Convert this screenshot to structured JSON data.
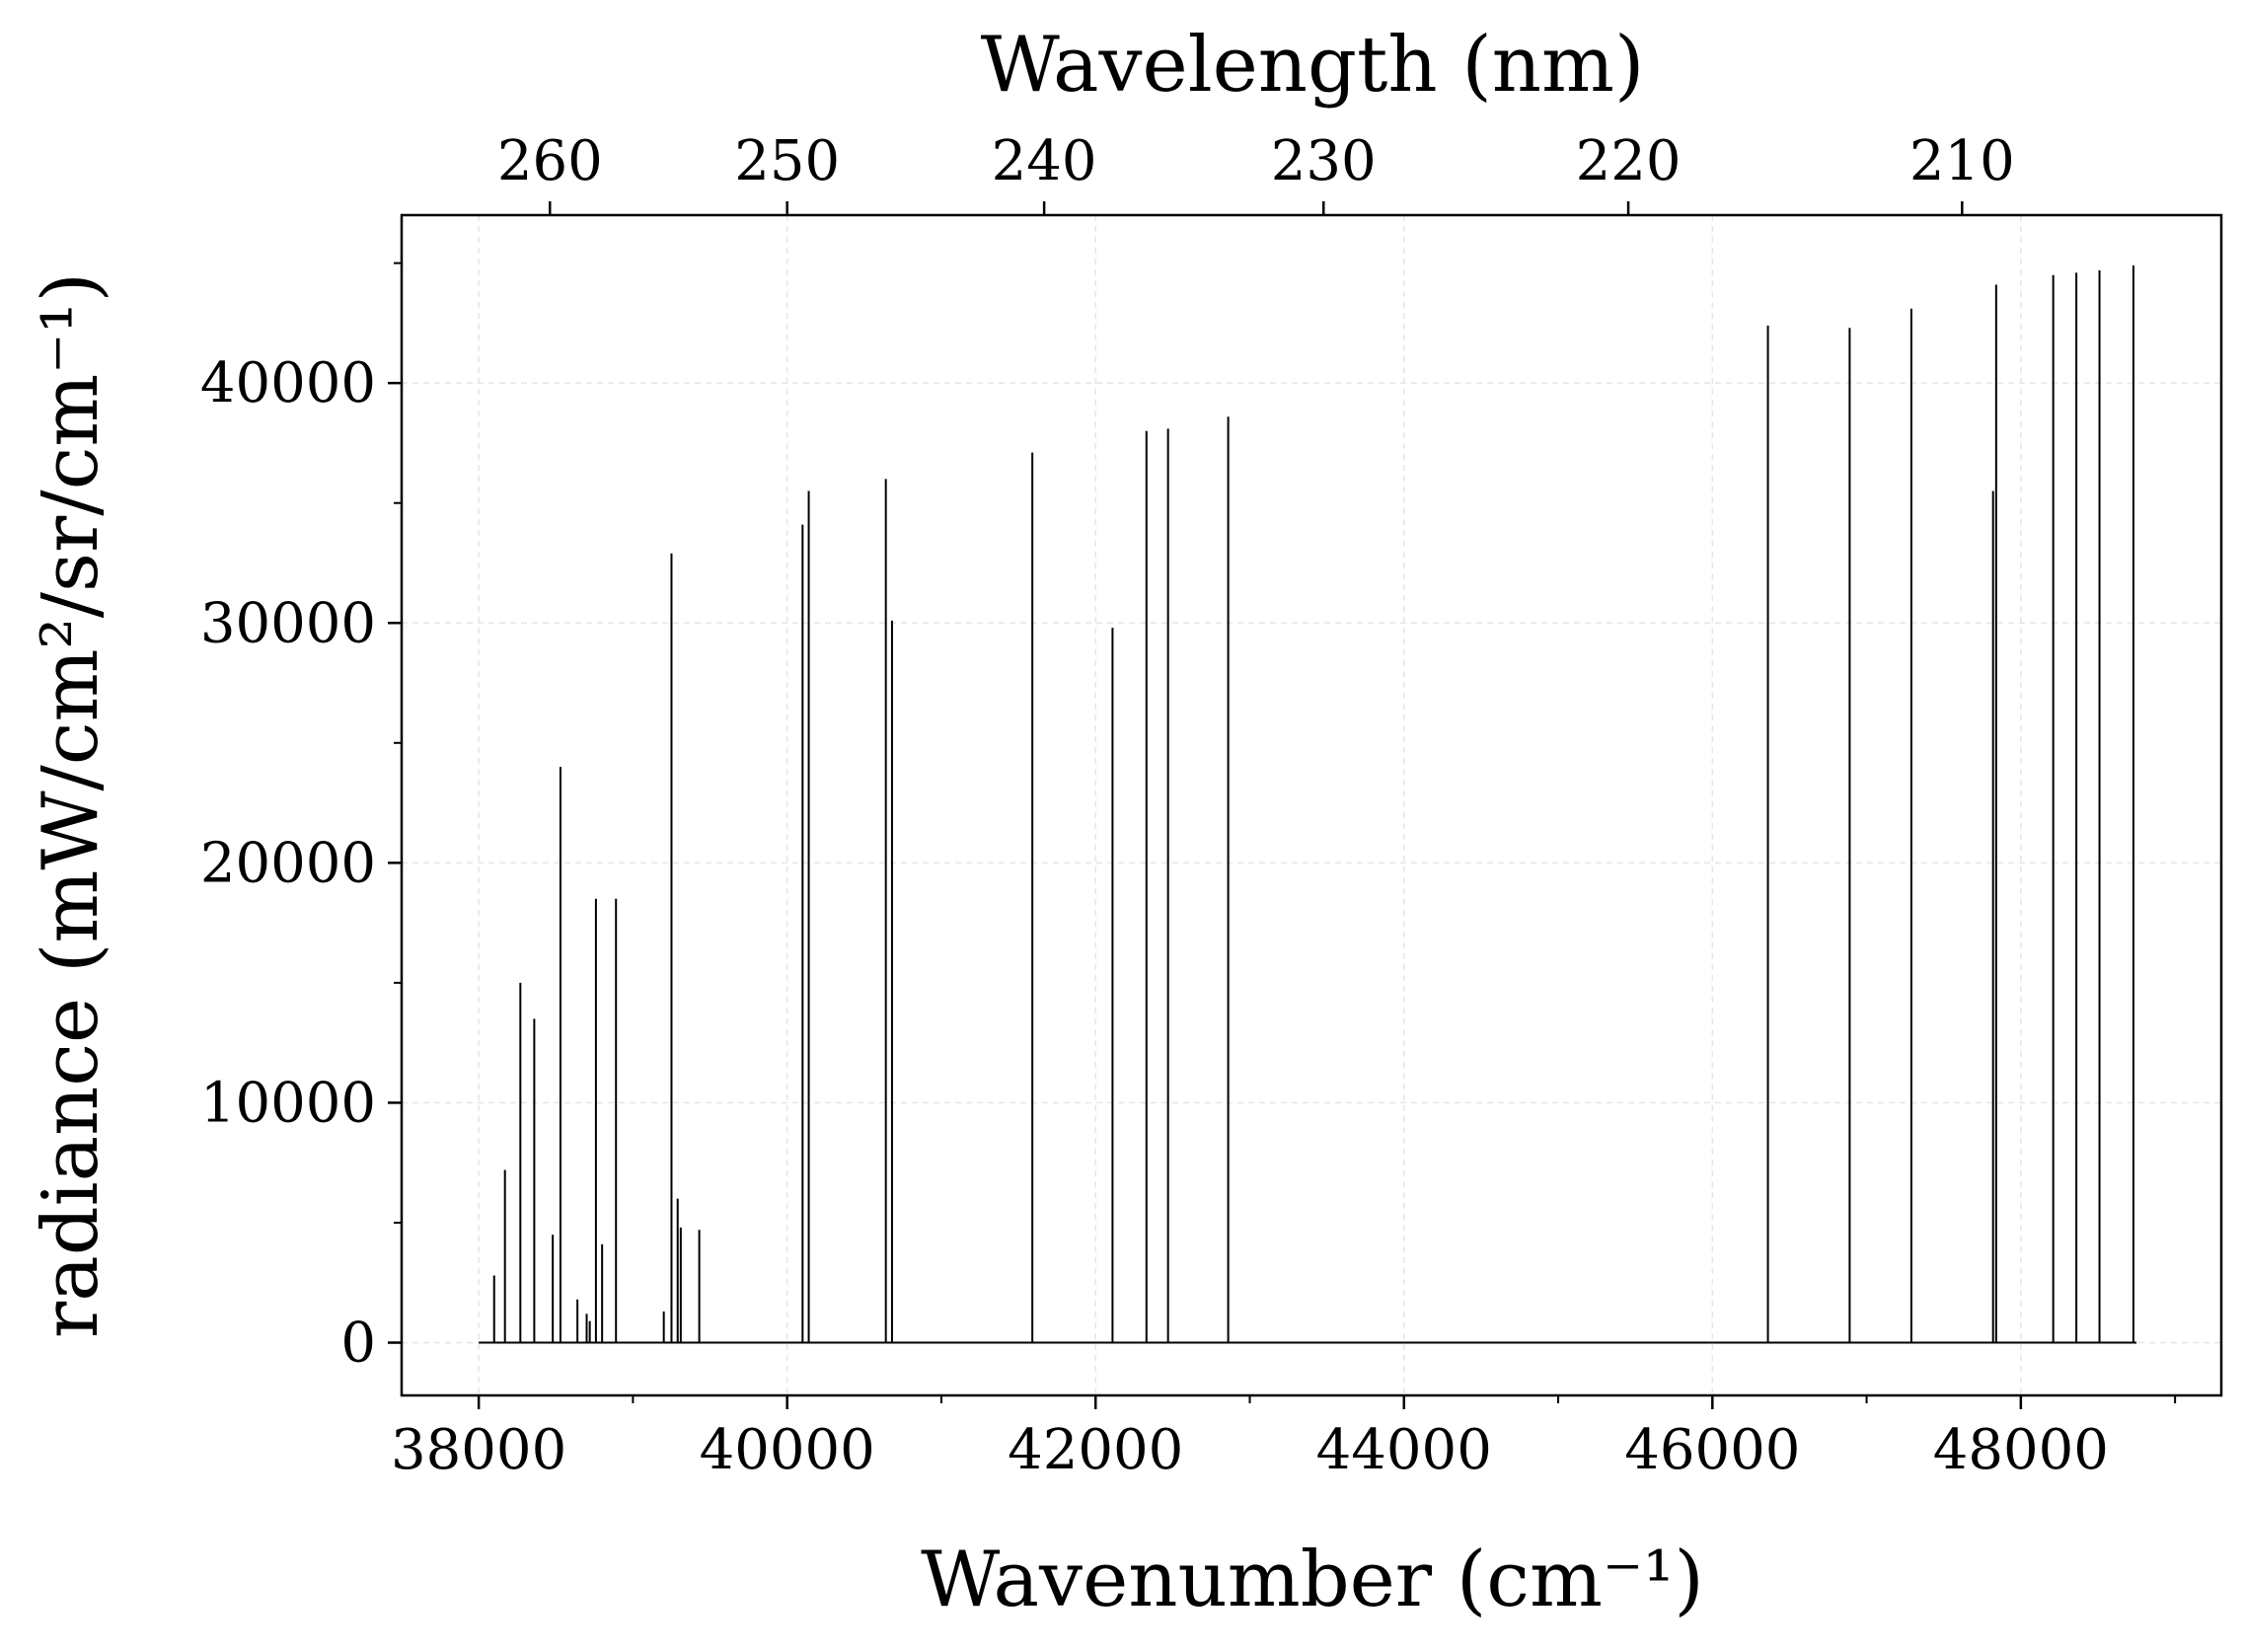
{
  "chart_data": {
    "type": "line",
    "xlabel": "Wavenumber (cm⁻¹)",
    "ylabel": "radiance (mW/cm²/sr/cm⁻¹)",
    "top_xlabel": "Wavelength (nm)",
    "xlim": [
      37500,
      49300
    ],
    "ylim": [
      -2200,
      47000
    ],
    "x_ticks": [
      38000,
      40000,
      42000,
      44000,
      46000,
      48000
    ],
    "x_tick_labels": [
      "38000",
      "40000",
      "42000",
      "44000",
      "46000",
      "48000"
    ],
    "x_minor_ticks": [
      39000,
      41000,
      43000,
      45000,
      47000,
      49000
    ],
    "y_ticks": [
      0,
      10000,
      20000,
      30000,
      40000
    ],
    "y_tick_labels": [
      "0",
      "10000",
      "20000",
      "30000",
      "40000"
    ],
    "y_minor_ticks": [
      5000,
      15000,
      25000,
      35000,
      45000
    ],
    "top_ticks_nm": [
      260,
      250,
      240,
      230,
      220,
      210
    ],
    "top_tick_labels": [
      "260",
      "250",
      "240",
      "230",
      "220",
      "210"
    ],
    "grid": true,
    "baseline_range": [
      38000,
      48750
    ],
    "lines": [
      {
        "x": 38100,
        "y": 2800
      },
      {
        "x": 38170,
        "y": 7200
      },
      {
        "x": 38270,
        "y": 15000
      },
      {
        "x": 38360,
        "y": 13500
      },
      {
        "x": 38480,
        "y": 4500
      },
      {
        "x": 38530,
        "y": 24000
      },
      {
        "x": 38640,
        "y": 1800
      },
      {
        "x": 38700,
        "y": 1200
      },
      {
        "x": 38720,
        "y": 900
      },
      {
        "x": 38760,
        "y": 18500
      },
      {
        "x": 38800,
        "y": 4100
      },
      {
        "x": 38890,
        "y": 18500
      },
      {
        "x": 39200,
        "y": 1300
      },
      {
        "x": 39250,
        "y": 32900
      },
      {
        "x": 39290,
        "y": 6000
      },
      {
        "x": 39310,
        "y": 4800
      },
      {
        "x": 39430,
        "y": 4700
      },
      {
        "x": 40100,
        "y": 34100
      },
      {
        "x": 40140,
        "y": 35500
      },
      {
        "x": 40640,
        "y": 36000
      },
      {
        "x": 40680,
        "y": 30100
      },
      {
        "x": 41590,
        "y": 37100
      },
      {
        "x": 42110,
        "y": 29800
      },
      {
        "x": 42330,
        "y": 38000
      },
      {
        "x": 42470,
        "y": 38100
      },
      {
        "x": 42860,
        "y": 38600
      },
      {
        "x": 46360,
        "y": 42400
      },
      {
        "x": 46890,
        "y": 42300
      },
      {
        "x": 47290,
        "y": 43100
      },
      {
        "x": 47820,
        "y": 35500
      },
      {
        "x": 47840,
        "y": 44100
      },
      {
        "x": 48210,
        "y": 44500
      },
      {
        "x": 48360,
        "y": 44600
      },
      {
        "x": 48510,
        "y": 44700
      },
      {
        "x": 48730,
        "y": 44900
      }
    ]
  }
}
